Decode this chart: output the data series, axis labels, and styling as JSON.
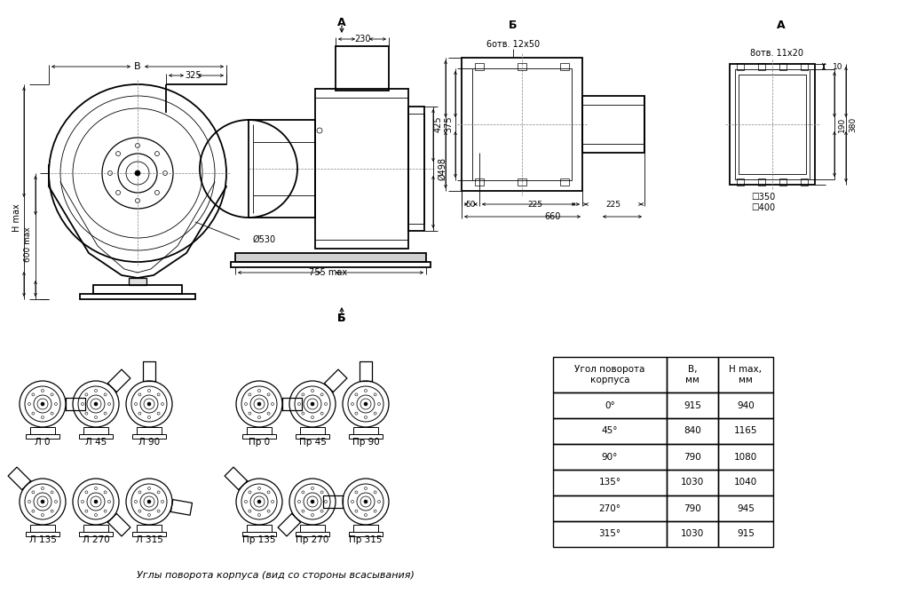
{
  "table_angles": [
    "0°",
    "45°",
    "90°",
    "135°",
    "270°",
    "315°"
  ],
  "table_B": [
    915,
    840,
    790,
    1030,
    790,
    1030
  ],
  "table_Hmax": [
    940,
    1165,
    1080,
    1040,
    945,
    915
  ],
  "fan_labels_row1": [
    "Л 0",
    "Л 45",
    "Л 90",
    "Пр 0",
    "Пр 45",
    "Пр 90"
  ],
  "fan_labels_row2": [
    "Л 135",
    "Л 270",
    "Л 315",
    "Пр 135",
    "Пр 270",
    "Пр 315"
  ],
  "bottom_caption": "Углы поворота корпуса (вид со стороны всасывания)"
}
